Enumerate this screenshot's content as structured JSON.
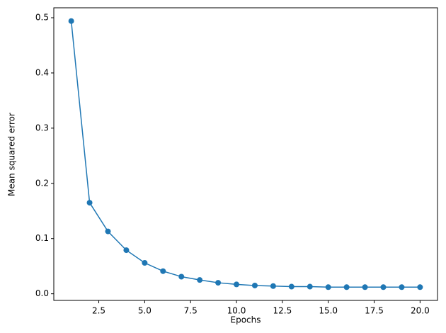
{
  "chart_data": {
    "type": "line",
    "xlabel": "Epochs",
    "ylabel": "Mean squared error",
    "x": [
      1,
      2,
      3,
      4,
      5,
      6,
      7,
      8,
      9,
      10,
      11,
      12,
      13,
      14,
      15,
      16,
      17,
      18,
      19,
      20
    ],
    "series": [
      {
        "color": "#1f77b4",
        "values": [
          0.494,
          0.165,
          0.113,
          0.079,
          0.056,
          0.041,
          0.031,
          0.025,
          0.02,
          0.017,
          0.015,
          0.014,
          0.013,
          0.013,
          0.012,
          0.012,
          0.012,
          0.012,
          0.012,
          0.012
        ]
      }
    ],
    "xlim": [
      0.05,
      20.95
    ],
    "ylim": [
      -0.012,
      0.518
    ],
    "xticks": [
      {
        "value": 2.5,
        "label": "2.5"
      },
      {
        "value": 5,
        "label": "5.0"
      },
      {
        "value": 7.5,
        "label": "7.5"
      },
      {
        "value": 10,
        "label": "10.0"
      },
      {
        "value": 12.5,
        "label": "12.5"
      },
      {
        "value": 15,
        "label": "15.0"
      },
      {
        "value": 17.5,
        "label": "17.5"
      },
      {
        "value": 20,
        "label": "20.0"
      }
    ],
    "yticks": [
      {
        "value": 0,
        "label": "0.0"
      },
      0.1,
      0.2,
      0.3,
      0.4,
      0.5
    ]
  }
}
